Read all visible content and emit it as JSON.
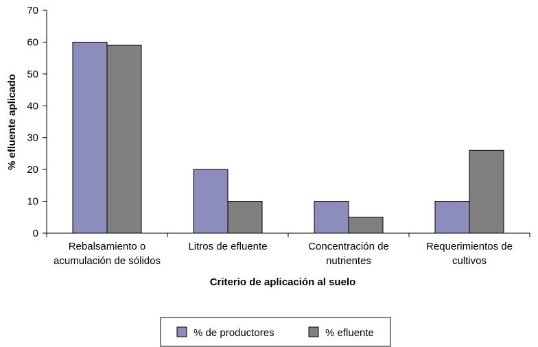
{
  "chart_data": {
    "type": "bar",
    "xlabel": "Criterio de aplicación al suelo",
    "ylabel": "% efluente aplicado",
    "ylim": [
      0,
      70
    ],
    "yticks": [
      0,
      10,
      20,
      30,
      40,
      50,
      60,
      70
    ],
    "categories": [
      [
        "Rebalsamiento o",
        "acumulación de sólidos"
      ],
      [
        "Litros de efluente"
      ],
      [
        "Concentración de",
        "nutrientes"
      ],
      [
        "Requerimientos de",
        "cultivos"
      ]
    ],
    "series": [
      {
        "name": "% de productores",
        "color": "#8c8cbd",
        "values": [
          60,
          20,
          10,
          10
        ]
      },
      {
        "name": "% efluente",
        "color": "#808080",
        "values": [
          59,
          10,
          5,
          26
        ]
      }
    ],
    "legend_position": "bottom",
    "grid": false
  }
}
